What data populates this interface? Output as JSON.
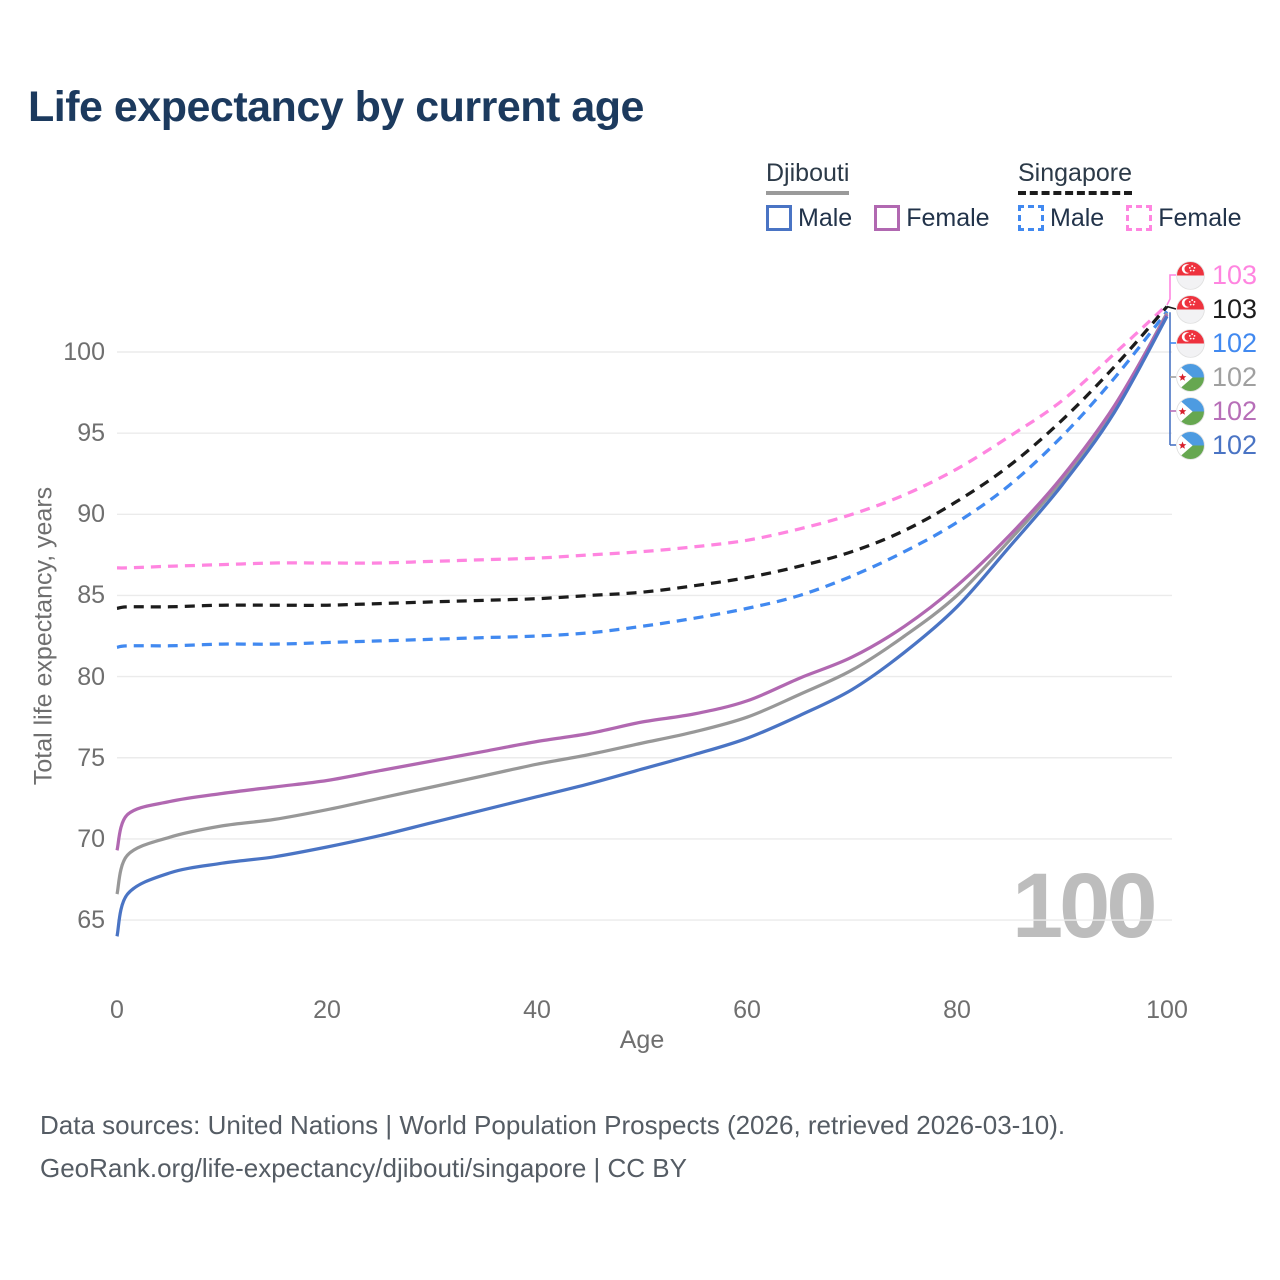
{
  "title": "Life expectancy by current age",
  "watermark": "100",
  "legend": {
    "groups": [
      {
        "label": "Djibouti",
        "line_style": "solid",
        "underline_color": "#9a9a9a",
        "items": [
          {
            "label": "Male",
            "color": "#4a74c4",
            "dash": false
          },
          {
            "label": "Female",
            "color": "#b168b1",
            "dash": false
          }
        ]
      },
      {
        "label": "Singapore",
        "line_style": "dashed",
        "underline_color": "#1c1c1c",
        "items": [
          {
            "label": "Male",
            "color": "#4189f0",
            "dash": true
          },
          {
            "label": "Female",
            "color": "#ff85e0",
            "dash": true
          }
        ]
      }
    ]
  },
  "footer": {
    "line1": "Data sources: United Nations | World Population Prospects (2026, retrieved 2026-03-10).",
    "line2": "GeoRank.org/life-expectancy/djibouti/singapore | CC BY"
  },
  "colors": {
    "title": "#1c3a5e",
    "grid": "#ebebeb",
    "axis_text": "#6f6f6f",
    "watermark": "#bdbdbd",
    "footer_text": "#555c64"
  },
  "chart_data": {
    "type": "line",
    "title": "Life expectancy by current age",
    "xlabel": "Age",
    "ylabel": "Total life expectancy, years",
    "xlim": [
      0,
      100
    ],
    "ylim": [
      61,
      105
    ],
    "x_ticks": [
      0,
      20,
      40,
      60,
      80,
      100
    ],
    "y_ticks": [
      65,
      70,
      75,
      80,
      85,
      90,
      95,
      100
    ],
    "grid": "horizontal-only",
    "legend_position": "top-right",
    "ages": [
      0,
      1,
      5,
      10,
      15,
      20,
      25,
      30,
      35,
      40,
      45,
      50,
      55,
      60,
      65,
      70,
      75,
      80,
      85,
      90,
      95,
      100
    ],
    "series": [
      {
        "id": "singapore-female",
        "name": "Singapore — Female",
        "country": "Singapore",
        "sex": "Female",
        "color": "#ff85e0",
        "dash": true,
        "flag_icon": "singapore-flag-icon",
        "end_label": "103",
        "values": [
          86.7,
          86.7,
          86.8,
          86.9,
          87.0,
          87.0,
          87.0,
          87.1,
          87.2,
          87.3,
          87.5,
          87.7,
          88.0,
          88.4,
          89.1,
          90.0,
          91.2,
          92.8,
          94.8,
          97.0,
          99.9,
          102.9
        ]
      },
      {
        "id": "singapore-both",
        "name": "Singapore — Both sexes",
        "country": "Singapore",
        "sex": "Both",
        "color": "#1c1c1c",
        "dash": true,
        "flag_icon": "singapore-flag-icon",
        "end_label": "103",
        "values": [
          84.2,
          84.3,
          84.3,
          84.4,
          84.4,
          84.4,
          84.5,
          84.6,
          84.7,
          84.8,
          85.0,
          85.2,
          85.6,
          86.1,
          86.8,
          87.7,
          89.0,
          90.8,
          93.0,
          95.8,
          99.1,
          102.8
        ]
      },
      {
        "id": "singapore-male",
        "name": "Singapore — Male",
        "country": "Singapore",
        "sex": "Male",
        "color": "#4189f0",
        "dash": true,
        "flag_icon": "singapore-flag-icon",
        "end_label": "102",
        "values": [
          81.8,
          81.9,
          81.9,
          82.0,
          82.0,
          82.1,
          82.2,
          82.3,
          82.4,
          82.5,
          82.7,
          83.1,
          83.6,
          84.2,
          85.0,
          86.2,
          87.7,
          89.5,
          91.8,
          94.8,
          98.4,
          102.5
        ]
      },
      {
        "id": "djibouti-both",
        "name": "Djibouti — Both sexes",
        "country": "Djibouti",
        "sex": "Both",
        "color": "#989898",
        "label_color": "#a0a0a0",
        "dash": false,
        "flag_icon": "djibouti-flag-icon",
        "end_label": "102",
        "values": [
          66.6,
          69.0,
          70.1,
          70.8,
          71.2,
          71.8,
          72.5,
          73.2,
          73.9,
          74.6,
          75.2,
          75.9,
          76.6,
          77.5,
          78.9,
          80.4,
          82.5,
          85.0,
          88.4,
          92.1,
          96.6,
          102.4
        ]
      },
      {
        "id": "djibouti-female",
        "name": "Djibouti — Female",
        "country": "Djibouti",
        "sex": "Female",
        "color": "#b168b1",
        "label_color": "#b76fb8",
        "dash": false,
        "flag_icon": "djibouti-flag-icon",
        "end_label": "102",
        "values": [
          69.3,
          71.5,
          72.3,
          72.8,
          73.2,
          73.6,
          74.2,
          74.8,
          75.4,
          76.0,
          76.5,
          77.2,
          77.7,
          78.5,
          79.9,
          81.2,
          83.1,
          85.6,
          88.7,
          92.3,
          96.7,
          102.3
        ]
      },
      {
        "id": "djibouti-male",
        "name": "Djibouti — Male",
        "country": "Djibouti",
        "sex": "Male",
        "color": "#4a74c4",
        "dash": false,
        "flag_icon": "djibouti-flag-icon",
        "end_label": "102",
        "values": [
          64.0,
          66.6,
          67.9,
          68.5,
          68.9,
          69.5,
          70.2,
          71.0,
          71.8,
          72.6,
          73.4,
          74.3,
          75.2,
          76.2,
          77.6,
          79.2,
          81.5,
          84.3,
          88.0,
          91.8,
          96.3,
          102.2
        ]
      }
    ]
  }
}
